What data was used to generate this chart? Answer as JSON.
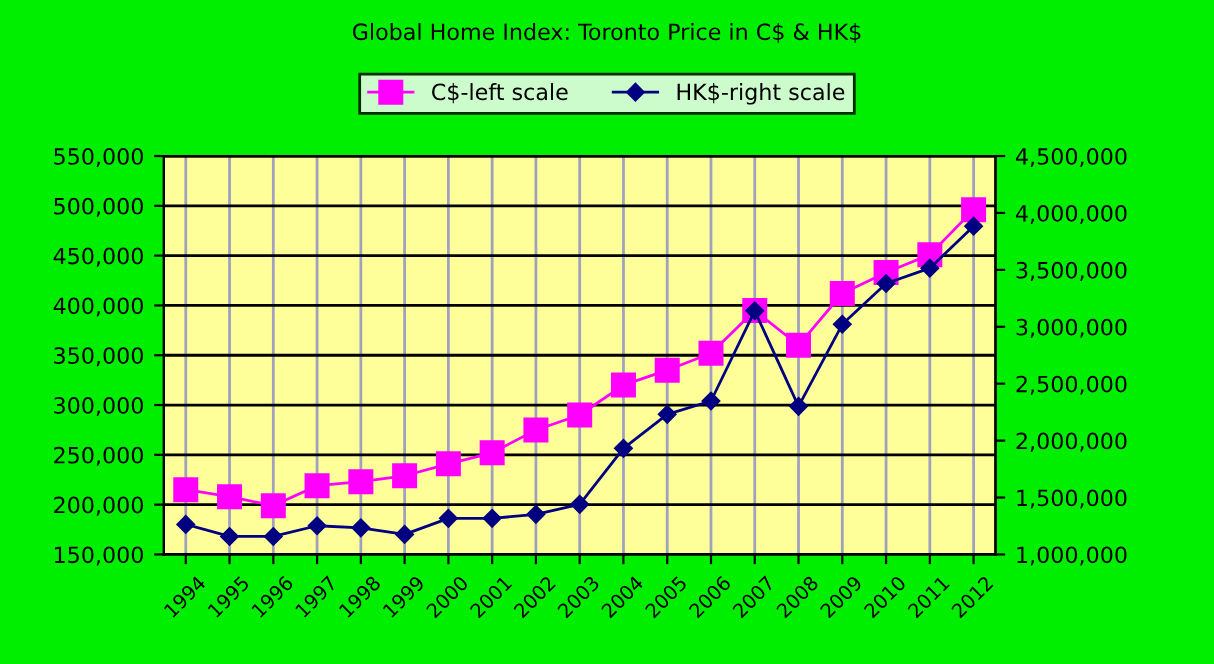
{
  "chart_data": {
    "type": "line",
    "title": "Global Home Index: Toronto Price in C$ & HK$",
    "categories": [
      "1994",
      "1995",
      "1996",
      "1997",
      "1998",
      "1999",
      "2000",
      "2001",
      "2002",
      "2003",
      "2004",
      "2005",
      "2006",
      "2007",
      "2008",
      "2009",
      "2010",
      "2011",
      "2012"
    ],
    "series": [
      {
        "name": "C$-left scale",
        "color": "#ff00ff",
        "marker": "square",
        "values": [
          215000,
          208000,
          199000,
          219000,
          223000,
          229000,
          241000,
          252000,
          275000,
          290000,
          320000,
          335000,
          352000,
          395000,
          360000,
          412000,
          433000,
          451000,
          496000
        ]
      },
      {
        "name": "HK$-right scale",
        "color": "#000080",
        "marker": "diamond",
        "axis": "y2",
        "values": [
          1264000,
          1158000,
          1158000,
          1252000,
          1234000,
          1176000,
          1317000,
          1317000,
          1352000,
          1440000,
          1932000,
          2231000,
          2348000,
          3140000,
          2301000,
          3022000,
          3380000,
          3515000,
          3884000
        ]
      }
    ],
    "ylim": [
      150000,
      550000
    ],
    "yticks": [
      {
        "value": 150000,
        "label": "150,000"
      },
      {
        "value": 200000,
        "label": "200,000"
      },
      {
        "value": 250000,
        "label": "250,000"
      },
      {
        "value": 300000,
        "label": "300,000"
      },
      {
        "value": 350000,
        "label": "350,000"
      },
      {
        "value": 400000,
        "label": "400,000"
      },
      {
        "value": 450000,
        "label": "450,000"
      },
      {
        "value": 500000,
        "label": "500,000"
      },
      {
        "value": 550000,
        "label": "550,000"
      }
    ],
    "y2lim": [
      1000000,
      4500000
    ],
    "y2ticks": [
      {
        "value": 1000000,
        "label": "1,000,000"
      },
      {
        "value": 1500000,
        "label": "1,500,000"
      },
      {
        "value": 2000000,
        "label": "2,000,000"
      },
      {
        "value": 2500000,
        "label": "2,500,000"
      },
      {
        "value": 3000000,
        "label": "3,000,000"
      },
      {
        "value": 3500000,
        "label": "3,500,000"
      },
      {
        "value": 4000000,
        "label": "4,000,000"
      },
      {
        "value": 4500000,
        "label": "4,500,000"
      }
    ],
    "grid": true,
    "legend": "top",
    "line_style": "solid"
  }
}
